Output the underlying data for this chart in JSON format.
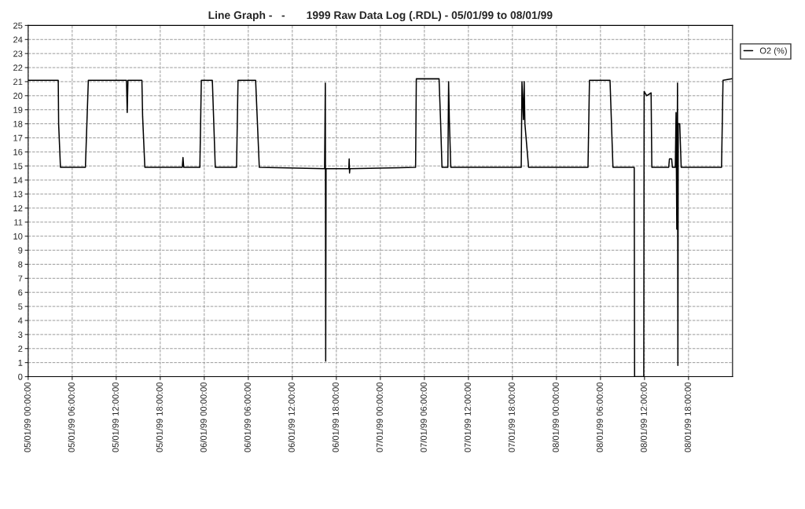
{
  "chart_data": {
    "type": "line",
    "title": "Line Graph -   -       1999 Raw Data Log (.RDL) - 05/01/99 to 08/01/99",
    "xlim": [
      "1999-01-05T00:00",
      "1999-01-09T00:00"
    ],
    "ylim": [
      0,
      25
    ],
    "xticks": [
      {
        "value": "1999-01-05T00:00",
        "label": "05/01/99 00:00:00"
      },
      {
        "value": "1999-01-05T06:00",
        "label": "05/01/99 06:00:00"
      },
      {
        "value": "1999-01-05T12:00",
        "label": "05/01/99 12:00:00"
      },
      {
        "value": "1999-01-05T18:00",
        "label": "05/01/99 18:00:00"
      },
      {
        "value": "1999-01-06T00:00",
        "label": "06/01/99 00:00:00"
      },
      {
        "value": "1999-01-06T06:00",
        "label": "06/01/99 06:00:00"
      },
      {
        "value": "1999-01-06T12:00",
        "label": "06/01/99 12:00:00"
      },
      {
        "value": "1999-01-06T18:00",
        "label": "06/01/99 18:00:00"
      },
      {
        "value": "1999-01-07T00:00",
        "label": "07/01/99 00:00:00"
      },
      {
        "value": "1999-01-07T06:00",
        "label": "07/01/99 06:00:00"
      },
      {
        "value": "1999-01-07T12:00",
        "label": "07/01/99 12:00:00"
      },
      {
        "value": "1999-01-07T18:00",
        "label": "07/01/99 18:00:00"
      },
      {
        "value": "1999-01-08T00:00",
        "label": "08/01/99 00:00:00"
      },
      {
        "value": "1999-01-08T06:00",
        "label": "08/01/99 06:00:00"
      },
      {
        "value": "1999-01-08T12:00",
        "label": "08/01/99 12:00:00"
      },
      {
        "value": "1999-01-08T18:00",
        "label": "08/01/99 18:00:00"
      }
    ],
    "yticks": [
      0,
      1,
      2,
      3,
      4,
      5,
      6,
      7,
      8,
      9,
      10,
      11,
      12,
      13,
      14,
      15,
      16,
      17,
      18,
      19,
      20,
      21,
      22,
      23,
      24,
      25
    ],
    "grid": true,
    "legend": "top right",
    "line_style": "solid",
    "series": [
      {
        "name": "O2 (%)",
        "color": "#000000",
        "x": [
          "1999-01-05T00:00",
          "1999-01-05T04:06",
          "1999-01-05T04:09",
          "1999-01-05T04:24",
          "1999-01-05T07:48",
          "1999-01-05T08:12",
          "1999-01-05T13:24",
          "1999-01-05T13:30",
          "1999-01-05T13:36",
          "1999-01-05T15:30",
          "1999-01-05T15:36",
          "1999-01-05T15:54",
          "1999-01-05T21:00",
          "1999-01-05T21:06",
          "1999-01-05T21:12",
          "1999-01-05T23:24",
          "1999-01-05T23:36",
          "1999-01-06T01:06",
          "1999-01-06T01:30",
          "1999-01-06T04:24",
          "1999-01-06T04:36",
          "1999-01-06T07:00",
          "1999-01-06T07:30",
          "1999-01-06T16:24",
          "1999-01-06T16:30",
          "1999-01-06T16:33",
          "1999-01-06T16:36",
          "1999-01-06T19:42",
          "1999-01-06T19:45",
          "1999-01-06T19:48",
          "1999-01-06T19:51",
          "1999-01-07T04:48",
          "1999-01-07T04:54",
          "1999-01-07T08:00",
          "1999-01-07T08:12",
          "1999-01-07T08:24",
          "1999-01-07T09:12",
          "1999-01-07T09:18",
          "1999-01-07T09:24",
          "1999-01-07T09:36",
          "1999-01-07T19:12",
          "1999-01-07T19:18",
          "1999-01-07T19:30",
          "1999-01-07T19:36",
          "1999-01-07T19:42",
          "1999-01-07T20:12",
          "1999-01-08T04:18",
          "1999-01-08T04:30",
          "1999-01-08T07:18",
          "1999-01-08T07:42",
          "1999-01-08T10:36",
          "1999-01-08T10:39",
          "1999-01-08T11:54",
          "1999-01-08T11:57",
          "1999-01-08T12:18",
          "1999-01-08T12:54",
          "1999-01-08T13:00",
          "1999-01-08T15:18",
          "1999-01-08T15:24",
          "1999-01-08T15:42",
          "1999-01-08T15:48",
          "1999-01-08T16:12",
          "1999-01-08T16:18",
          "1999-01-08T16:24",
          "1999-01-08T16:30",
          "1999-01-08T16:33",
          "1999-01-08T16:36",
          "1999-01-08T16:48",
          "1999-01-08T17:00",
          "1999-01-08T22:30",
          "1999-01-08T22:42",
          "1999-01-08T23:54"
        ],
        "values": [
          21.1,
          21.1,
          18,
          14.9,
          14.9,
          21.1,
          21.1,
          18.8,
          21.1,
          21.1,
          18.5,
          14.9,
          14.9,
          15.6,
          14.9,
          14.9,
          21.1,
          21.1,
          14.9,
          14.9,
          21.1,
          21.1,
          14.9,
          14.8,
          20.9,
          1.1,
          14.8,
          14.8,
          15.5,
          14.5,
          14.8,
          14.9,
          21.2,
          21.2,
          18.3,
          14.9,
          14.9,
          21.0,
          18.3,
          14.9,
          14.9,
          21.0,
          18.3,
          21.0,
          18.0,
          14.9,
          14.9,
          21.1,
          21.1,
          14.9,
          14.9,
          0,
          0,
          20.3,
          20.0,
          20.2,
          14.9,
          14.9,
          15.5,
          15.5,
          14.9,
          14.9,
          18.8,
          10.5,
          20.9,
          0.8,
          18.0,
          18.0,
          14.9,
          14.9,
          21.1,
          21.2
        ]
      }
    ]
  }
}
